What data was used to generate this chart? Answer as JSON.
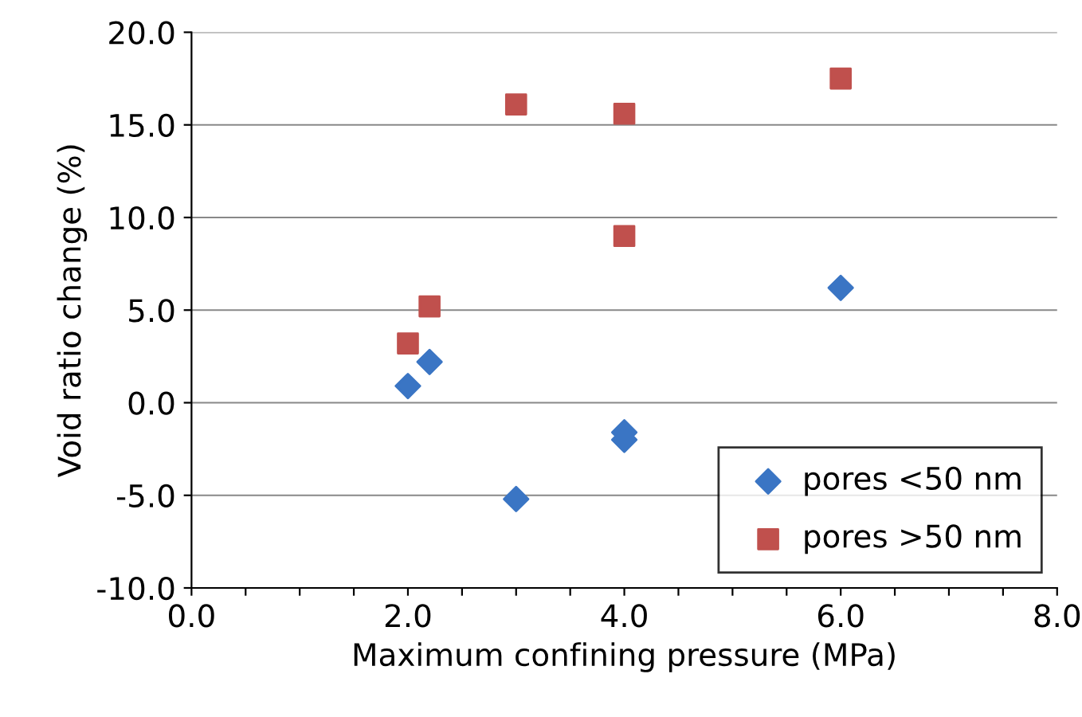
{
  "chart_data": {
    "type": "scatter",
    "xlabel": "Maximum confining pressure (MPa)",
    "ylabel": "Void ratio change (%)",
    "xlim": [
      0,
      8
    ],
    "ylim": [
      -10,
      20
    ],
    "xticks": [
      {
        "value": 0,
        "label": "0.0"
      },
      {
        "value": 0.5,
        "label": null
      },
      {
        "value": 1,
        "label": null
      },
      {
        "value": 1.5,
        "label": null
      },
      {
        "value": 2,
        "label": "2.0"
      },
      {
        "value": 2.5,
        "label": null
      },
      {
        "value": 3,
        "label": null
      },
      {
        "value": 3.5,
        "label": null
      },
      {
        "value": 4,
        "label": "4.0"
      },
      {
        "value": 4.5,
        "label": null
      },
      {
        "value": 5,
        "label": null
      },
      {
        "value": 5.5,
        "label": null
      },
      {
        "value": 6,
        "label": "6.0"
      },
      {
        "value": 6.5,
        "label": null
      },
      {
        "value": 7,
        "label": null
      },
      {
        "value": 7.5,
        "label": null
      },
      {
        "value": 8,
        "label": "8.0"
      }
    ],
    "yticks": [
      {
        "value": -10,
        "label": "-10.0"
      },
      {
        "value": -5,
        "label": "-5.0"
      },
      {
        "value": 0,
        "label": "0.0"
      },
      {
        "value": 5,
        "label": "5.0"
      },
      {
        "value": 10,
        "label": "10.0"
      },
      {
        "value": 15,
        "label": "15.0"
      },
      {
        "value": 20,
        "label": "20.0"
      }
    ],
    "grid": "y",
    "legend": "bottom right",
    "series": [
      {
        "name": "pores <50 nm",
        "color": "#3a75c4",
        "marker": "diamond",
        "x": [
          2.0,
          2.2,
          3.0,
          4.0,
          4.0,
          6.0
        ],
        "values": [
          0.9,
          2.2,
          -5.2,
          -1.6,
          -2.0,
          6.2
        ]
      },
      {
        "name": "pores >50 nm",
        "color": "#c0504d",
        "marker": "square",
        "x": [
          2.0,
          2.2,
          3.0,
          4.0,
          4.0,
          6.0
        ],
        "values": [
          3.2,
          5.2,
          16.1,
          15.6,
          9.0,
          17.5
        ]
      }
    ]
  }
}
